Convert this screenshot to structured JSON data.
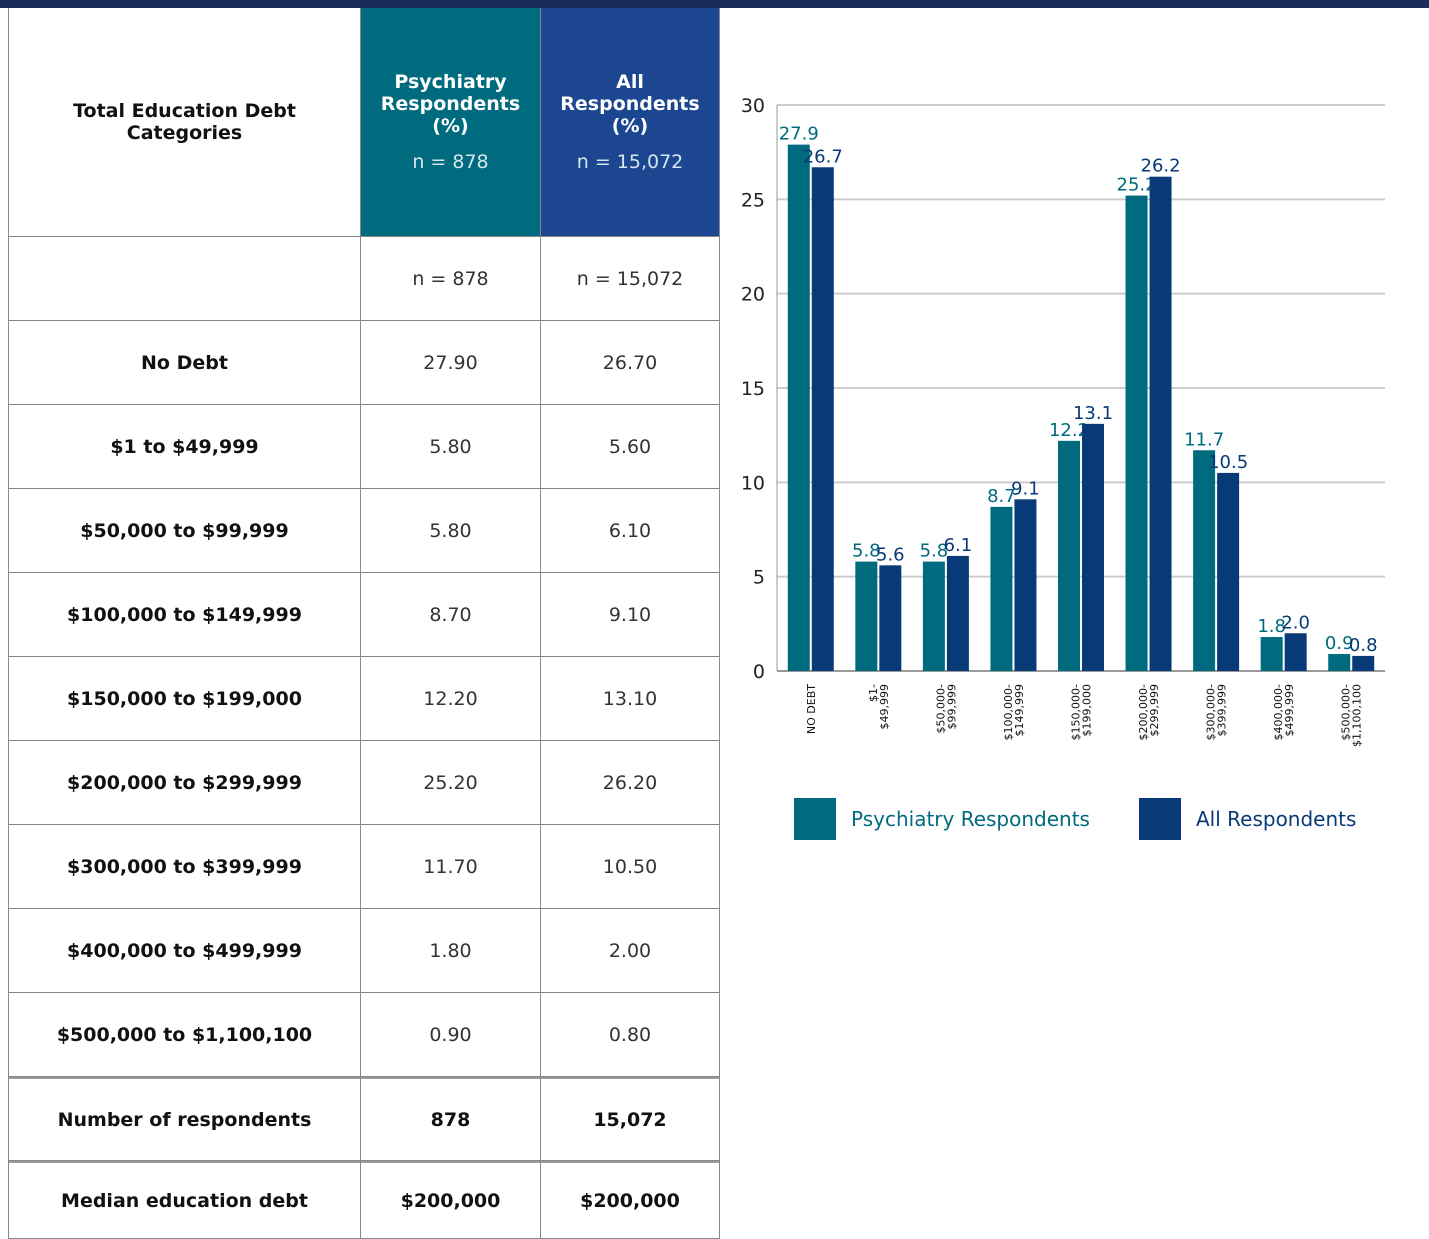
{
  "table": {
    "header": [
      "Total Education Debt Categories",
      "Psychiatry Respondents (%)",
      "All Respondents (%)"
    ],
    "header_n": [
      "n = 878",
      "n = 15,072"
    ],
    "rows": [
      [
        null,
        "n = 878",
        "n = 15,072"
      ],
      [
        "No Debt",
        "27.90",
        "26.70"
      ],
      [
        "$1 to $49,999",
        "5.80",
        "5.60"
      ],
      [
        "$50,000 to $99,999",
        "5.80",
        "6.10"
      ],
      [
        "$100,000 to $149,999",
        "8.70",
        "9.10"
      ],
      [
        "$150,000 to $199,000",
        "12.20",
        "13.10"
      ],
      [
        "$200,000 to $299,999",
        "25.20",
        "26.20"
      ],
      [
        "$300,000 to $399,999",
        "11.70",
        "10.50"
      ],
      [
        "$400,000 to $499,999",
        "1.80",
        "2.00"
      ],
      [
        "$500,000 to $1,100,100",
        "0.90",
        "0.80"
      ],
      [
        "Number of respondents",
        "878",
        "15,072"
      ],
      [
        "Median education debt",
        "$200,000",
        "$200,000"
      ]
    ]
  },
  "chart_data": {
    "type": "bar",
    "categories": [
      "NO DEBT",
      "$1-\n$49,999",
      "$50,000-\n$99,999",
      "$100,000-\n$149,999",
      "$150,000-\n$199,000",
      "$200,000-\n$299,999",
      "$300,000-\n$399,999",
      "$400,000-\n$499,999",
      "$500,000-\n$1,100,100"
    ],
    "series": [
      {
        "name": "Psychiatry Respondents",
        "color": "#006b7f",
        "values": [
          27.9,
          5.8,
          5.8,
          8.7,
          12.2,
          25.2,
          11.7,
          1.8,
          0.9
        ],
        "value_labels": [
          "27.9",
          "5.8",
          "5.8",
          "8.7",
          "12.2",
          "25.2",
          "11.7",
          "1.8",
          "0.9"
        ]
      },
      {
        "name": "All Respondents",
        "color": "#083a78",
        "values": [
          26.7,
          5.6,
          6.1,
          9.1,
          13.1,
          26.2,
          10.5,
          2.0,
          0.8
        ],
        "value_labels": [
          "26.7",
          "5.6",
          "6.1",
          "9.1",
          "13.1",
          "26.2",
          "10.5",
          "2.0",
          "0.8"
        ]
      }
    ],
    "ylim": [
      0,
      30
    ],
    "yticks": [
      0,
      5,
      10,
      15,
      20,
      25,
      30
    ],
    "grid": true,
    "legend": "bottom"
  }
}
